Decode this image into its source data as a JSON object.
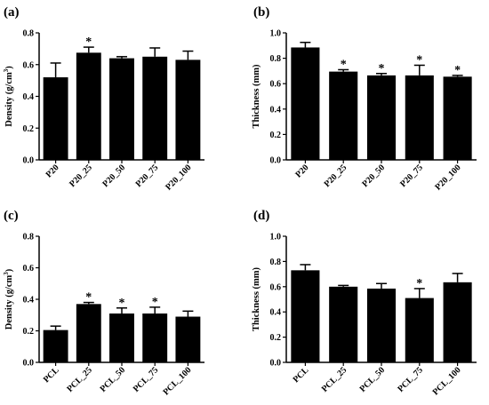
{
  "chart_data": [
    {
      "panel_label": "(a)",
      "type": "bar",
      "ylabel": "Density (g/cm3)",
      "ylabel_parts": [
        "Density (g/cm",
        "3",
        ")"
      ],
      "ylim": [
        0,
        0.8
      ],
      "yticks": [
        "0.0",
        "0.2",
        "0.4",
        "0.6",
        "0.8"
      ],
      "ytick_values": [
        0,
        0.2,
        0.4,
        0.6,
        0.8
      ],
      "categories": [
        "P20",
        "P20_25",
        "P20_50",
        "P20_75",
        "P20_100"
      ],
      "values": [
        0.52,
        0.675,
        0.64,
        0.65,
        0.63
      ],
      "errors": [
        0.09,
        0.035,
        0.01,
        0.055,
        0.055
      ],
      "significance": [
        "",
        "*",
        "",
        "",
        ""
      ],
      "bar_color": "#000000"
    },
    {
      "panel_label": "(b)",
      "type": "bar",
      "ylabel": "Thickness (mm)",
      "ylim": [
        0,
        1.0
      ],
      "yticks": [
        "0.0",
        "0.2",
        "0.4",
        "0.6",
        "0.8",
        "1.0"
      ],
      "ytick_values": [
        0,
        0.2,
        0.4,
        0.6,
        0.8,
        1.0
      ],
      "categories": [
        "P20",
        "P20_25",
        "P20_50",
        "P20_75",
        "P20_100"
      ],
      "values": [
        0.885,
        0.695,
        0.665,
        0.665,
        0.655
      ],
      "errors": [
        0.04,
        0.015,
        0.015,
        0.08,
        0.01
      ],
      "significance": [
        "",
        "*",
        "*",
        "*",
        "*"
      ],
      "bar_color": "#000000"
    },
    {
      "panel_label": "(c)",
      "type": "bar",
      "ylabel": "Density (g/cm3)",
      "ylabel_parts": [
        "Density (g/cm",
        "3",
        ")"
      ],
      "ylim": [
        0,
        0.8
      ],
      "yticks": [
        "0.0",
        "0.2",
        "0.4",
        "0.6",
        "0.8"
      ],
      "ytick_values": [
        0,
        0.2,
        0.4,
        0.6,
        0.8
      ],
      "categories": [
        "PCL",
        "PCL_25",
        "PCL_50",
        "PCL_75",
        "PCL_100"
      ],
      "values": [
        0.205,
        0.37,
        0.31,
        0.31,
        0.29
      ],
      "errors": [
        0.025,
        0.01,
        0.035,
        0.04,
        0.035
      ],
      "significance": [
        "",
        "*",
        "*",
        "*",
        ""
      ],
      "bar_color": "#000000"
    },
    {
      "panel_label": "(d)",
      "type": "bar",
      "ylabel": "Thickness (mm)",
      "ylim": [
        0,
        1.0
      ],
      "yticks": [
        "0.0",
        "0.2",
        "0.4",
        "0.6",
        "0.8",
        "1.0"
      ],
      "ytick_values": [
        0,
        0.2,
        0.4,
        0.6,
        0.8,
        1.0
      ],
      "categories": [
        "PCL",
        "PCL_25",
        "PCL_50",
        "PCL_75",
        "PCL_100"
      ],
      "values": [
        0.73,
        0.6,
        0.585,
        0.51,
        0.635
      ],
      "errors": [
        0.045,
        0.01,
        0.04,
        0.075,
        0.07
      ],
      "significance": [
        "",
        "",
        "",
        "*",
        ""
      ],
      "bar_color": "#000000"
    }
  ]
}
